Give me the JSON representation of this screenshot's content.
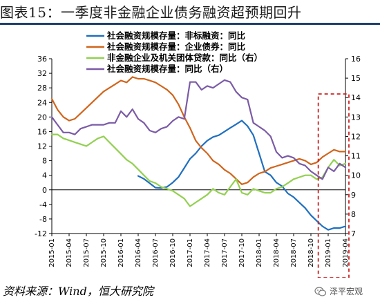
{
  "header": {
    "title": "图表15：一季度非金融企业债务融资超预期回升"
  },
  "footer": {
    "source": "资料来源：Wind，恒大研究院",
    "watermark": "泽平宏观"
  },
  "colors": {
    "blue": "#1f6fbf",
    "orange": "#d0651c",
    "green": "#92d050",
    "purple": "#7b5ba6",
    "highlight": "#cc2222"
  },
  "chart_data": {
    "type": "line",
    "x": [
      "2015-01",
      "2015-02",
      "2015-03",
      "2015-04",
      "2015-05",
      "2015-06",
      "2015-07",
      "2015-08",
      "2015-09",
      "2015-10",
      "2015-11",
      "2015-12",
      "2016-01",
      "2016-02",
      "2016-03",
      "2016-04",
      "2016-05",
      "2016-06",
      "2016-07",
      "2016-08",
      "2016-09",
      "2016-10",
      "2016-11",
      "2016-12",
      "2017-01",
      "2017-02",
      "2017-03",
      "2017-04",
      "2017-05",
      "2017-06",
      "2017-07",
      "2017-08",
      "2017-09",
      "2017-10",
      "2017-11",
      "2017-12",
      "2018-01",
      "2018-02",
      "2018-03",
      "2018-04",
      "2018-05",
      "2018-06",
      "2018-07",
      "2018-08",
      "2018-09",
      "2018-10",
      "2018-11",
      "2018-12",
      "2019-01",
      "2019-02",
      "2019-03",
      "2019-04"
    ],
    "x_tick_labels": [
      "2015-01",
      "2015-04",
      "2015-07",
      "2015-10",
      "2016-01",
      "2016-04",
      "2016-07",
      "2016-10",
      "2017-01",
      "2017-04",
      "2017-07",
      "2017-10",
      "2018-01",
      "2018-04",
      "2018-07",
      "2018-10",
      "2019-01",
      "2019-04"
    ],
    "y_left": {
      "min": -12,
      "max": 36,
      "ticks": [
        36,
        32,
        28,
        24,
        20,
        16,
        12,
        8,
        4,
        0,
        -4,
        -8,
        -12
      ]
    },
    "y_right": {
      "min": 7,
      "max": 16,
      "ticks": [
        16,
        15,
        14,
        13,
        12,
        11,
        10,
        9,
        8,
        7
      ]
    },
    "grid": false,
    "legend_position": "top",
    "highlight_box": {
      "from": "2018-12",
      "to": "2019-04",
      "style": "dashed"
    },
    "series": [
      {
        "name": "社会融资规模存量：非标融资：同比",
        "axis": "left",
        "color": "#1f6fbf",
        "values": [
          null,
          null,
          null,
          null,
          null,
          null,
          null,
          null,
          null,
          null,
          null,
          null,
          null,
          null,
          null,
          3.8,
          3.0,
          1.8,
          0.6,
          0.5,
          0.8,
          2.0,
          3.5,
          6.0,
          8.5,
          10.0,
          12.0,
          13.5,
          14.5,
          15.0,
          16.0,
          17.0,
          18.0,
          19.0,
          17.5,
          15.0,
          10.0,
          5.0,
          4.0,
          2.0,
          1.0,
          -1.0,
          -2.0,
          -3.5,
          -5.0,
          -7.0,
          -8.5,
          -10.0,
          -11.0,
          -10.5,
          -10.5,
          -10.0
        ]
      },
      {
        "name": "社会融资规模存量：企业债券：同比",
        "axis": "left",
        "color": "#d0651c",
        "values": [
          25.0,
          22.0,
          20.0,
          19.0,
          19.5,
          21.0,
          22.5,
          24.0,
          25.5,
          27.0,
          28.0,
          29.0,
          30.0,
          29.5,
          31.0,
          30.5,
          30.5,
          30.0,
          29.5,
          28.5,
          27.5,
          26.0,
          23.5,
          20.0,
          17.0,
          13.5,
          11.5,
          10.0,
          8.0,
          7.0,
          5.5,
          4.5,
          3.0,
          1.5,
          2.0,
          3.5,
          4.5,
          5.0,
          6.0,
          6.5,
          7.0,
          7.5,
          8.0,
          8.5,
          8.0,
          7.0,
          7.5,
          9.0,
          10.0,
          11.0,
          10.5,
          10.5
        ]
      },
      {
        "name": "非金融企业及机关团体贷款：同比（右）",
        "axis": "right",
        "color": "#92d050",
        "values": [
          12.1,
          12.1,
          11.9,
          11.8,
          11.7,
          11.6,
          11.5,
          11.7,
          11.9,
          12.0,
          11.7,
          11.4,
          11.1,
          10.8,
          10.6,
          10.3,
          10.0,
          9.7,
          9.6,
          9.4,
          9.3,
          9.2,
          9.0,
          8.8,
          8.4,
          8.6,
          8.8,
          9.0,
          9.3,
          9.1,
          9.0,
          9.4,
          9.8,
          9.1,
          9.0,
          9.3,
          9.2,
          9.1,
          9.1,
          9.3,
          9.4,
          9.6,
          9.8,
          9.9,
          10.0,
          10.0,
          9.8,
          9.9,
          10.4,
          10.8,
          10.5,
          10.6
        ]
      },
      {
        "name": "社会融资规模存量：同比（右）",
        "axis": "right",
        "color": "#7b5ba6",
        "values": [
          13.0,
          12.6,
          12.2,
          12.2,
          12.1,
          12.4,
          12.5,
          12.6,
          12.6,
          12.6,
          12.7,
          12.7,
          13.3,
          13.0,
          13.4,
          12.9,
          12.7,
          12.3,
          12.2,
          12.4,
          12.5,
          12.8,
          13.0,
          12.9,
          14.8,
          14.8,
          14.4,
          14.6,
          14.5,
          14.7,
          14.9,
          14.8,
          14.3,
          14.0,
          13.9,
          12.7,
          12.5,
          12.3,
          12.0,
          11.2,
          10.9,
          11.0,
          10.9,
          10.6,
          10.5,
          10.2,
          10.0,
          9.8,
          10.4,
          10.2,
          10.6,
          10.4
        ]
      }
    ]
  }
}
